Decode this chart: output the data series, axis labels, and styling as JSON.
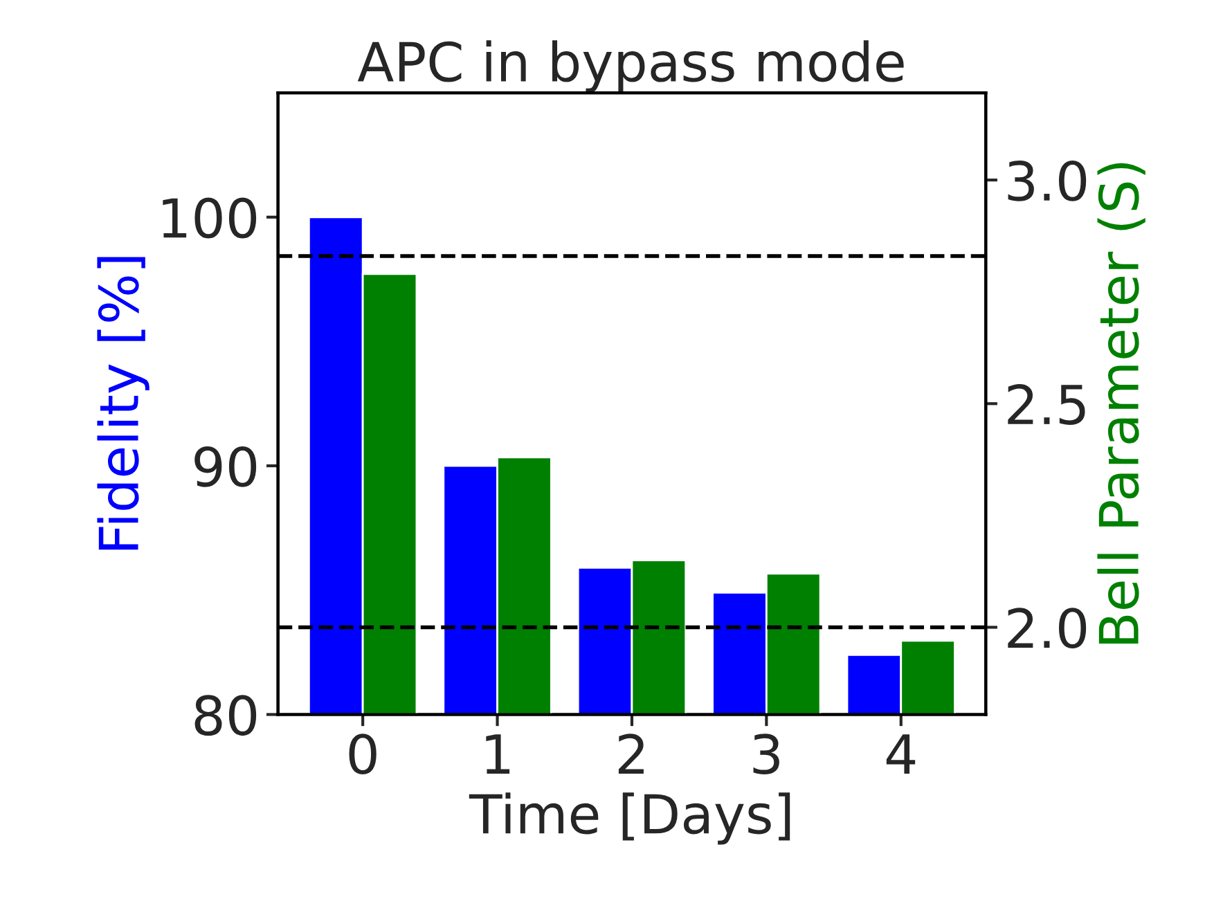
{
  "chart_data": {
    "type": "bar",
    "title": "APC in bypass mode",
    "xlabel": "Time [Days]",
    "ylabel": "Fidelity [%]",
    "y2label": "Bell Parameter (S)",
    "categories": [
      "0",
      "1",
      "2",
      "3",
      "4"
    ],
    "series": [
      {
        "color": "#0000ff",
        "values": [
          100,
          90,
          85.9,
          84.9,
          82.4
        ]
      },
      {
        "color": "#008000",
        "axis": "y2",
        "values": [
          2.79,
          2.38,
          2.15,
          2.12,
          1.97
        ]
      }
    ],
    "ylim": [
      80,
      105
    ],
    "yticks": [
      80,
      90,
      100
    ],
    "y2lim": [
      1.805,
      3.195
    ],
    "y2ticks": [
      {
        "value": 2.0,
        "label": "2.0"
      },
      {
        "value": 2.5,
        "label": "2.5"
      },
      {
        "value": 3.0,
        "label": "3.0"
      }
    ],
    "ref_lines": [
      {
        "axis": "y2",
        "value": 2.83,
        "color": "#000000",
        "line_style": "dashed"
      },
      {
        "axis": "y2",
        "value": 2.0,
        "color": "#000000",
        "line_style": "dashed"
      }
    ],
    "grid": false,
    "legend": false
  }
}
